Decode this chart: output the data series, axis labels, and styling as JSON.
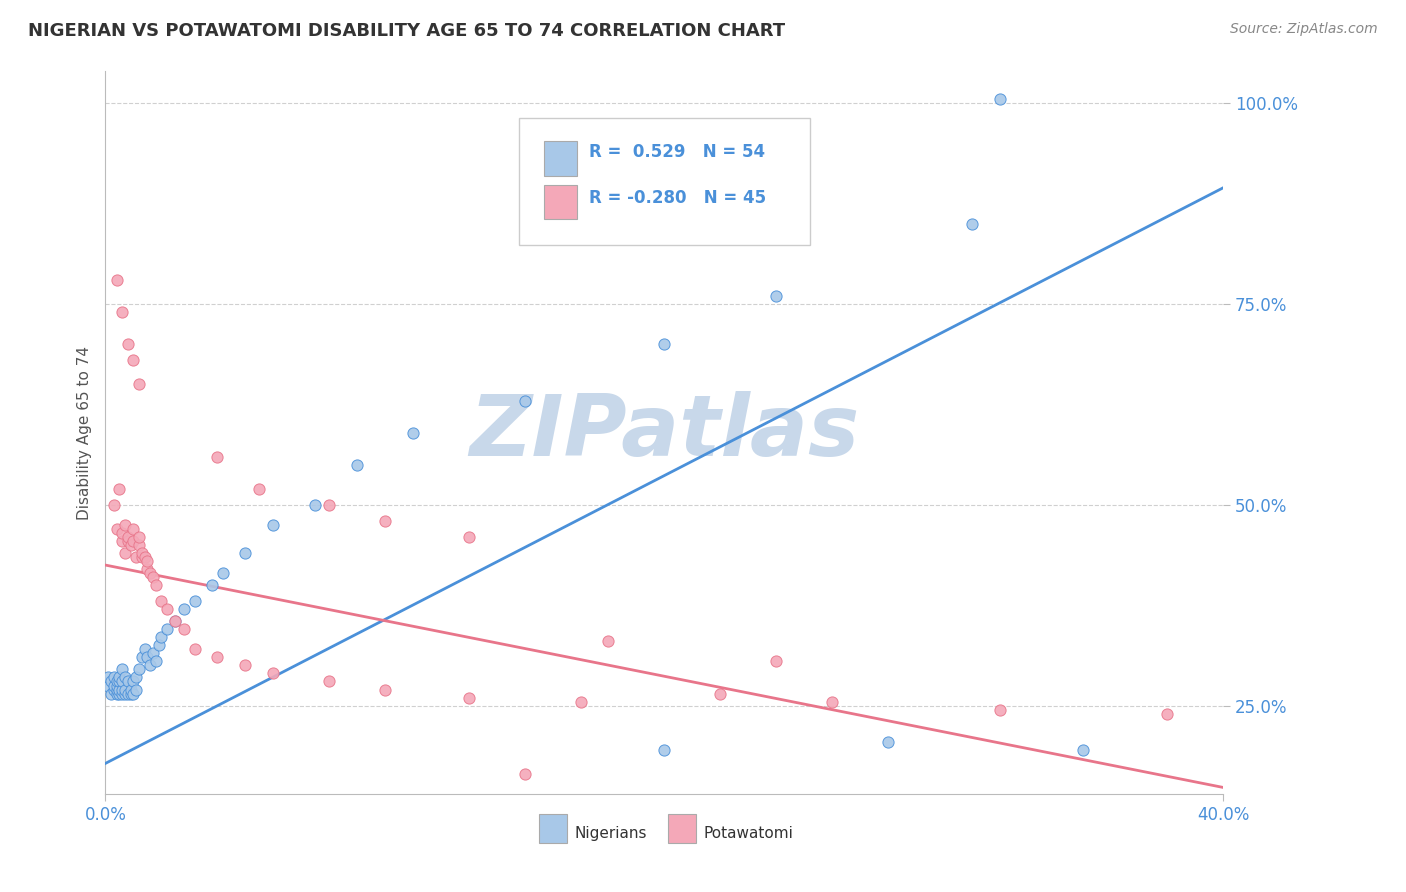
{
  "title": "NIGERIAN VS POTAWATOMI DISABILITY AGE 65 TO 74 CORRELATION CHART",
  "source": "Source: ZipAtlas.com",
  "ylabel": "Disability Age 65 to 74",
  "x_min": 0.0,
  "x_max": 0.4,
  "y_min": 0.14,
  "y_max": 1.04,
  "x_ticks": [
    0.0,
    0.4
  ],
  "x_tick_labels": [
    "0.0%",
    "40.0%"
  ],
  "y_ticks": [
    0.25,
    0.5,
    0.75,
    1.0
  ],
  "y_tick_labels": [
    "25.0%",
    "50.0%",
    "75.0%",
    "100.0%"
  ],
  "legend_r_nigerian": "0.529",
  "legend_n_nigerian": "54",
  "legend_r_potawatomi": "-0.280",
  "legend_n_potawatomi": "45",
  "nigerian_color": "#a8c8e8",
  "potawatomi_color": "#f4a8b8",
  "nigerian_line_color": "#4a90d9",
  "potawatomi_line_color": "#e8758a",
  "title_color": "#333333",
  "source_color": "#888888",
  "watermark_color": "#c8d8ea",
  "nigerian_trend": [
    0.178,
    0.895
  ],
  "potawatomi_trend": [
    0.425,
    0.148
  ],
  "nigerian_x": [
    0.001,
    0.001,
    0.002,
    0.002,
    0.003,
    0.003,
    0.003,
    0.004,
    0.004,
    0.004,
    0.004,
    0.005,
    0.005,
    0.005,
    0.005,
    0.006,
    0.006,
    0.006,
    0.006,
    0.007,
    0.007,
    0.007,
    0.008,
    0.008,
    0.009,
    0.009,
    0.01,
    0.01,
    0.011,
    0.011,
    0.012,
    0.013,
    0.014,
    0.015,
    0.016,
    0.017,
    0.018,
    0.019,
    0.02,
    0.022,
    0.025,
    0.028,
    0.032,
    0.038,
    0.042,
    0.05,
    0.06,
    0.075,
    0.09,
    0.11,
    0.15,
    0.2,
    0.24,
    0.31
  ],
  "nigerian_y": [
    0.275,
    0.285,
    0.265,
    0.28,
    0.27,
    0.275,
    0.285,
    0.265,
    0.27,
    0.275,
    0.28,
    0.265,
    0.27,
    0.28,
    0.285,
    0.265,
    0.27,
    0.28,
    0.295,
    0.265,
    0.27,
    0.285,
    0.265,
    0.28,
    0.265,
    0.27,
    0.265,
    0.28,
    0.27,
    0.285,
    0.295,
    0.31,
    0.32,
    0.31,
    0.3,
    0.315,
    0.305,
    0.325,
    0.335,
    0.345,
    0.355,
    0.37,
    0.38,
    0.4,
    0.415,
    0.44,
    0.475,
    0.5,
    0.55,
    0.59,
    0.63,
    0.7,
    0.76,
    0.85
  ],
  "nigerian_special": [
    [
      0.32,
      1.005
    ],
    [
      0.17,
      0.87
    ],
    [
      0.2,
      0.195
    ],
    [
      0.28,
      0.205
    ],
    [
      0.35,
      0.195
    ]
  ],
  "potawatomi_x": [
    0.003,
    0.004,
    0.005,
    0.006,
    0.006,
    0.007,
    0.007,
    0.008,
    0.008,
    0.009,
    0.01,
    0.01,
    0.011,
    0.012,
    0.012,
    0.013,
    0.013,
    0.014,
    0.015,
    0.015,
    0.016,
    0.017,
    0.018,
    0.02,
    0.022,
    0.025,
    0.028,
    0.032,
    0.04,
    0.05,
    0.06,
    0.08,
    0.1,
    0.13,
    0.17,
    0.22,
    0.26,
    0.32,
    0.38
  ],
  "potawatomi_y": [
    0.5,
    0.47,
    0.52,
    0.455,
    0.465,
    0.44,
    0.475,
    0.455,
    0.46,
    0.45,
    0.455,
    0.47,
    0.435,
    0.45,
    0.46,
    0.435,
    0.44,
    0.435,
    0.42,
    0.43,
    0.415,
    0.41,
    0.4,
    0.38,
    0.37,
    0.355,
    0.345,
    0.32,
    0.31,
    0.3,
    0.29,
    0.28,
    0.27,
    0.26,
    0.255,
    0.265,
    0.255,
    0.245,
    0.24
  ],
  "potawatomi_special": [
    [
      0.004,
      0.78
    ],
    [
      0.006,
      0.74
    ],
    [
      0.008,
      0.7
    ],
    [
      0.01,
      0.68
    ],
    [
      0.012,
      0.65
    ],
    [
      0.04,
      0.56
    ],
    [
      0.055,
      0.52
    ],
    [
      0.08,
      0.5
    ],
    [
      0.1,
      0.48
    ],
    [
      0.13,
      0.46
    ],
    [
      0.18,
      0.33
    ],
    [
      0.24,
      0.305
    ],
    [
      0.15,
      0.165
    ]
  ]
}
